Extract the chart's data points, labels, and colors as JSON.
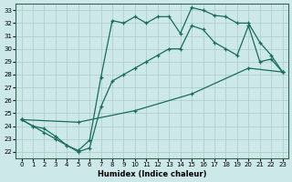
{
  "xlabel": "Humidex (Indice chaleur)",
  "bg_color": "#cce8e8",
  "grid_color": "#aacccc",
  "line_color": "#1a6b5a",
  "xlim": [
    -0.5,
    23.5
  ],
  "ylim": [
    21.5,
    33.5
  ],
  "xticks": [
    0,
    1,
    2,
    3,
    4,
    5,
    6,
    7,
    8,
    9,
    10,
    11,
    12,
    13,
    14,
    15,
    16,
    17,
    18,
    19,
    20,
    21,
    22,
    23
  ],
  "yticks": [
    22,
    23,
    24,
    25,
    26,
    27,
    28,
    29,
    30,
    31,
    32,
    33
  ],
  "line1_x": [
    0,
    1,
    2,
    3,
    4,
    5,
    6,
    7,
    8,
    9,
    10,
    11,
    12,
    13,
    14,
    15,
    16,
    17,
    18,
    19,
    20,
    21,
    22,
    23
  ],
  "line1_y": [
    24.5,
    24.0,
    23.8,
    23.2,
    22.5,
    22.1,
    22.9,
    27.8,
    32.2,
    32.0,
    32.5,
    32.0,
    32.5,
    32.5,
    31.2,
    33.2,
    33.0,
    32.6,
    32.5,
    32.0,
    32.0,
    30.5,
    29.5,
    28.2
  ],
  "line2_x": [
    0,
    1,
    2,
    3,
    4,
    5,
    6,
    7,
    8,
    9,
    10,
    11,
    12,
    13,
    14,
    15,
    16,
    17,
    18,
    19,
    20,
    21,
    22,
    23
  ],
  "line2_y": [
    24.5,
    24.0,
    23.5,
    23.0,
    22.5,
    22.0,
    22.3,
    25.5,
    27.5,
    28.0,
    28.5,
    29.0,
    29.5,
    30.0,
    30.0,
    31.8,
    31.5,
    30.5,
    30.0,
    29.5,
    31.8,
    29.0,
    29.2,
    28.2
  ],
  "line3_x": [
    0,
    5,
    10,
    15,
    20,
    23
  ],
  "line3_y": [
    24.5,
    24.3,
    25.2,
    26.5,
    28.5,
    28.2
  ]
}
